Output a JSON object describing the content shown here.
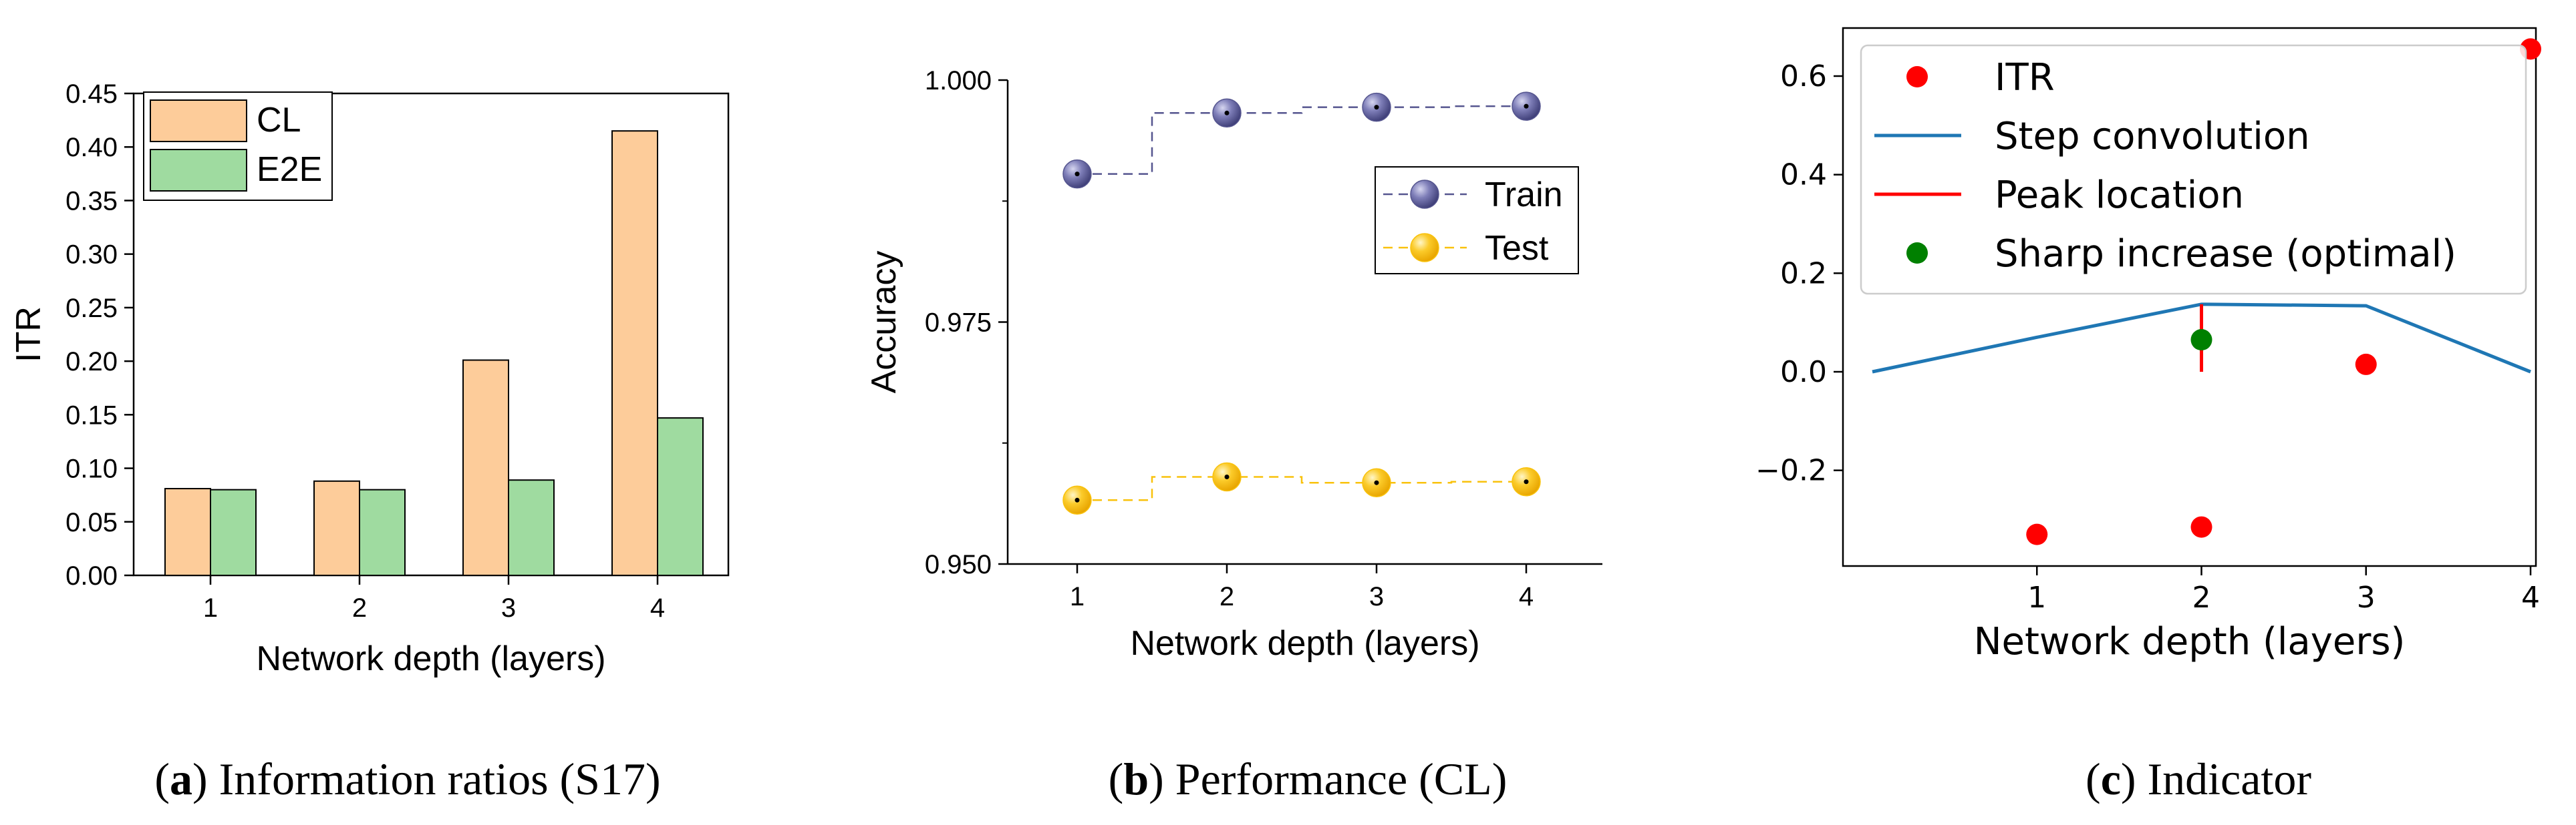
{
  "chart_data": [
    {
      "type": "bar",
      "caption": {
        "letter": "a",
        "text": "Information ratios (S17)"
      },
      "xlabel": "Network depth (layers)",
      "ylabel": "ITR",
      "categories": [
        "1",
        "2",
        "3",
        "4"
      ],
      "ylim": [
        0,
        0.45
      ],
      "yticks": [
        "0.00",
        "0.05",
        "0.10",
        "0.15",
        "0.20",
        "0.25",
        "0.30",
        "0.35",
        "0.40",
        "0.45"
      ],
      "series": [
        {
          "name": "CL",
          "color": "#FDCC9A",
          "values": [
            0.081,
            0.088,
            0.201,
            0.415
          ]
        },
        {
          "name": "E2E",
          "color": "#9FDBA0",
          "values": [
            0.08,
            0.08,
            0.089,
            0.147
          ]
        }
      ],
      "legend": "top-left",
      "grid": false
    },
    {
      "type": "line",
      "caption": {
        "letter": "b",
        "text": "Performance (CL)"
      },
      "xlabel": "Network depth (layers)",
      "ylabel": "Accuracy",
      "x": [
        1,
        2,
        3,
        4
      ],
      "xticks": [
        "1",
        "2",
        "3",
        "4"
      ],
      "ylim": [
        0.95,
        1.0
      ],
      "yticks": [
        "0.950",
        "0.975",
        "1.000"
      ],
      "series": [
        {
          "name": "Train",
          "color": "#55558F",
          "values": [
            0.9903,
            0.9966,
            0.9972,
            0.9973
          ]
        },
        {
          "name": "Test",
          "color": "#F9C20C",
          "values": [
            0.9566,
            0.959,
            0.9584,
            0.9585
          ]
        }
      ],
      "style": "step-dashed with sphere markers",
      "legend": "right",
      "grid": false
    },
    {
      "type": "line",
      "caption": {
        "letter": "c",
        "text": "Indicator"
      },
      "xlabel": "Network depth (layers)",
      "ylabel": "",
      "xlim": [
        0,
        4
      ],
      "ylim": [
        -0.38,
        0.66
      ],
      "xticks": [
        "1",
        "2",
        "3",
        "4"
      ],
      "yticks": [
        "−0.2",
        "0.0",
        "0.2",
        "0.4",
        "0.6"
      ],
      "series": [
        {
          "name": "ITR",
          "kind": "scatter",
          "color": "#FF0000",
          "x": [
            1,
            2,
            3,
            4
          ],
          "y": [
            -0.33,
            -0.315,
            0.015,
            0.655
          ]
        },
        {
          "name": "Step convolution",
          "kind": "line",
          "color": "#1F77B4",
          "x": [
            0,
            1,
            2,
            3,
            4
          ],
          "y": [
            0.0,
            0.07,
            0.137,
            0.134,
            0.0
          ]
        },
        {
          "name": "Peak location",
          "kind": "vline",
          "color": "#FF0000",
          "x": 2,
          "y": [
            0.0,
            0.137
          ]
        },
        {
          "name": "Sharp increase (optimal)",
          "kind": "scatter",
          "color": "#008000",
          "x": [
            2
          ],
          "y": [
            0.065
          ]
        }
      ],
      "legend": "top-left",
      "grid": false
    }
  ]
}
